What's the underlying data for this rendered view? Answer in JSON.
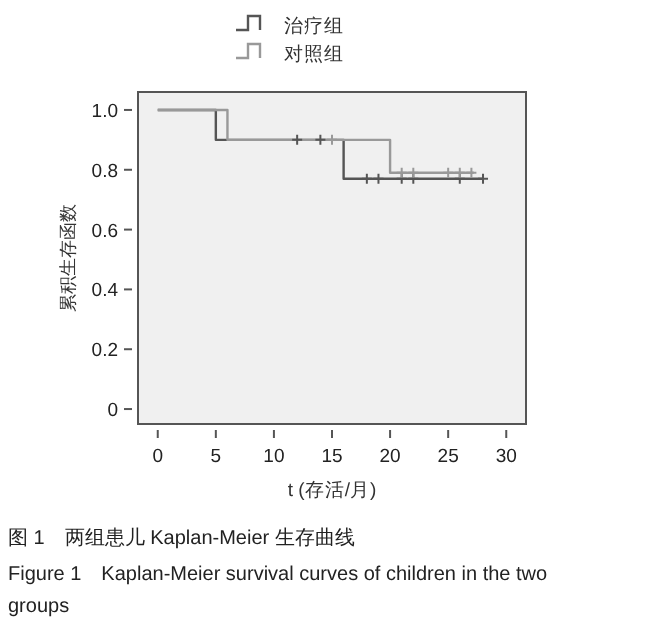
{
  "chart_data": {
    "type": "step",
    "xlabel": "t (存活/月)",
    "ylabel": "累积生存函数",
    "annotations": [
      "图 1　两组患儿 Kaplan-Meier 生存曲线",
      "Figure 1　Kaplan-Meier survival curves of children in the two groups"
    ],
    "xlim": [
      -1.7,
      31.7
    ],
    "ylim": [
      -0.05,
      1.06
    ],
    "xticks": [
      0,
      5,
      10,
      15,
      20,
      25,
      30
    ],
    "yticks": [
      0,
      0.2,
      0.4,
      0.6,
      0.8,
      {
        "value": 1,
        "label": "1.0"
      }
    ],
    "grid": false,
    "legend": "top",
    "series": [
      {
        "name": "治疗组",
        "color": "#555555",
        "x": [
          0,
          5,
          16,
          28
        ],
        "values": [
          1.0,
          0.9,
          0.77,
          0.77
        ]
      },
      {
        "name": "对照组",
        "color": "#999999",
        "x": [
          0,
          6,
          20,
          27.2
        ],
        "values": [
          1.0,
          0.9,
          0.79,
          0.79
        ]
      },
      {
        "color": "#555555",
        "type": "scatter",
        "marker": "cross",
        "x": [
          12,
          14,
          18,
          19,
          21,
          22,
          26,
          28
        ],
        "values": [
          0.9,
          0.9,
          0.77,
          0.77,
          0.77,
          0.77,
          0.77,
          0.77
        ]
      },
      {
        "color": "#999999",
        "type": "scatter",
        "marker": "cross",
        "x": [
          15,
          21,
          22,
          25,
          26,
          27
        ],
        "values": [
          0.9,
          0.79,
          0.79,
          0.79,
          0.79,
          0.79
        ]
      }
    ]
  }
}
